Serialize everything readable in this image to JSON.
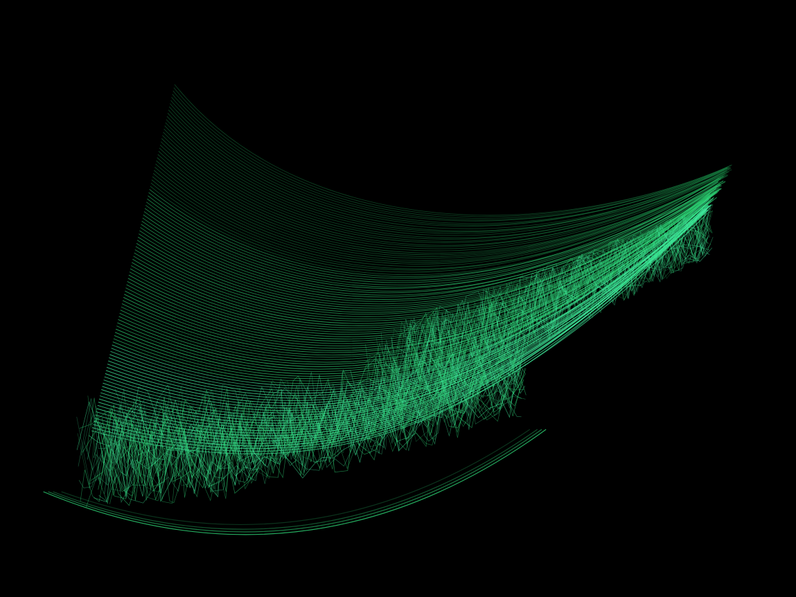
{
  "scene": {
    "background_color": "#000000",
    "line_color_bright": "#3ee89a",
    "line_color_mid": "#2ccd71",
    "line_color_dim": "#1a8a48"
  }
}
